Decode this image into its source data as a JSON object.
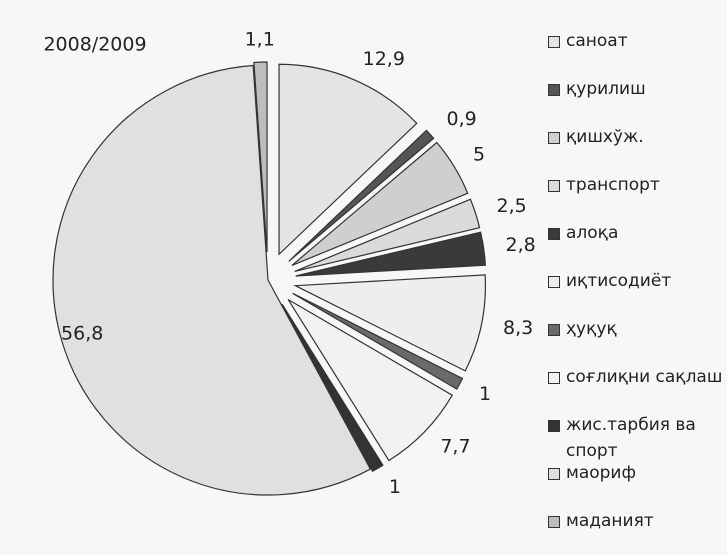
{
  "chart_data": {
    "type": "pie",
    "title": "2008/2009",
    "categories": [
      "саноат",
      "қурилиш",
      "қишхўж.",
      "транспорт",
      "алоқа",
      "иқтисодиёт",
      "ҳуқуқ",
      "соғлиқни сақлаш",
      "жис.тарбия ва спорт",
      "маориф",
      "маданият"
    ],
    "values": [
      12.9,
      0.9,
      5,
      2.5,
      2.8,
      8.3,
      1,
      7.7,
      1,
      56.8,
      1.1
    ],
    "value_labels": [
      "12,9",
      "0,9",
      "5",
      "2,5",
      "2,8",
      "8,3",
      "1",
      "7,7",
      "1",
      "56,8",
      "1,1"
    ],
    "colors": [
      "#e4e4e4",
      "#555555",
      "#cfcfcf",
      "#dadada",
      "#3a3a3a",
      "#eeeeee",
      "#6a6a6a",
      "#f2f2f2",
      "#333333",
      "#e0e0e0",
      "#bdbdbd"
    ],
    "legend": "right"
  }
}
